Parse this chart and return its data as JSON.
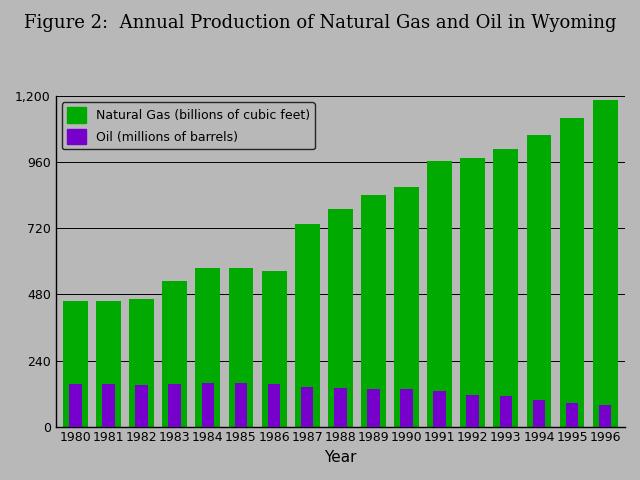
{
  "years": [
    "1980",
    "1981",
    "1982",
    "1983",
    "1984",
    "1985",
    "1986",
    "1987",
    "1988",
    "1989",
    "1990",
    "1991",
    "1992",
    "1993",
    "1994",
    "1995",
    "1996"
  ],
  "natural_gas": [
    455,
    455,
    465,
    530,
    575,
    575,
    565,
    735,
    790,
    840,
    870,
    965,
    975,
    1010,
    1060,
    1120,
    1185
  ],
  "oil": [
    155,
    155,
    150,
    155,
    160,
    160,
    155,
    145,
    140,
    135,
    135,
    130,
    115,
    110,
    95,
    85,
    80
  ],
  "gas_color": "#00aa00",
  "oil_color": "#7700cc",
  "background_color": "#b8b8b8",
  "plot_bg_color": "#b8b8b8",
  "title": "Figure 2:  Annual Production of Natural Gas and Oil in Wyoming",
  "xlabel": "Year",
  "ylabel": "",
  "ylim": [
    0,
    1200
  ],
  "yticks": [
    0,
    240,
    480,
    720,
    960,
    1200
  ],
  "ytick_labels": [
    "0",
    "240",
    "480",
    "720",
    "960",
    "1,200"
  ],
  "legend_gas": "Natural Gas (billions of cubic feet)",
  "legend_oil": "Oil (millions of barrels)",
  "title_fontsize": 13,
  "axis_fontsize": 9,
  "legend_fontsize": 9,
  "gas_bar_width": 0.75,
  "oil_bar_width": 0.38
}
